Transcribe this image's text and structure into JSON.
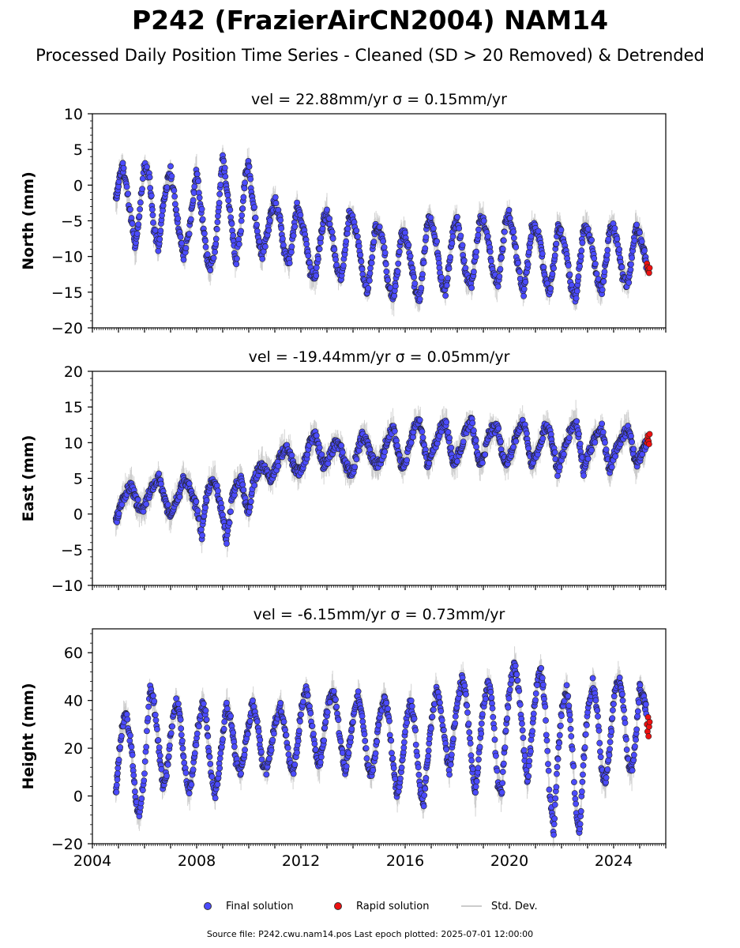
{
  "figure": {
    "title": "P242 (FrazierAirCN2004) NAM14",
    "subtitle": "Processed Daily Position Time Series - Cleaned (SD > 20 Removed) & Detrended",
    "footnote": "Source file: P242.cwu.nam14.pos  Last epoch plotted: 2025-07-01 12:00:00"
  },
  "colors": {
    "final": "#4b4bff",
    "rapid": "#ee1111",
    "stddev": "#c8c8c8",
    "edge": "#222222"
  },
  "legend": {
    "final": "Final solution",
    "rapid": "Rapid solution",
    "stddev": "Std. Dev."
  },
  "chart_data": [
    {
      "type": "scatter",
      "title": "vel = 22.88mm/yr   σ = 0.15mm/yr",
      "ylabel": "North (mm)",
      "xlim": [
        2004.0,
        2026.0
      ],
      "ylim": [
        -20,
        10
      ],
      "yticks": [
        -20,
        -15,
        -10,
        -5,
        0,
        5,
        10
      ],
      "xticks": [
        2004,
        2008,
        2012,
        2016,
        2020,
        2024
      ],
      "show_xtick_labels": false,
      "series": [
        {
          "name": "Final solution",
          "x": [
            2004.9,
            2005.0,
            2005.15,
            2005.3,
            2005.5,
            2005.65,
            2005.8,
            2006.0,
            2006.2,
            2006.35,
            2006.55,
            2006.7,
            2006.85,
            2007.0,
            2007.2,
            2007.35,
            2007.5,
            2007.7,
            2007.85,
            2008.0,
            2008.2,
            2008.35,
            2008.5,
            2008.7,
            2008.85,
            2009.0,
            2009.15,
            2009.35,
            2009.5,
            2009.7,
            2009.85,
            2010.0,
            2010.15,
            2010.35,
            2010.5,
            2010.7,
            2010.85,
            2011.0,
            2011.2,
            2011.35,
            2011.55,
            2011.7,
            2011.85,
            2012.0,
            2012.2,
            2012.35,
            2012.55,
            2012.7,
            2012.85,
            2013.0,
            2013.2,
            2013.35,
            2013.55,
            2013.7,
            2013.85,
            2014.0,
            2014.2,
            2014.35,
            2014.55,
            2014.7,
            2014.85,
            2015.0,
            2015.2,
            2015.35,
            2015.55,
            2015.7,
            2015.85,
            2016.0,
            2016.2,
            2016.35,
            2016.55,
            2016.7,
            2016.85,
            2017.0,
            2017.2,
            2017.35,
            2017.55,
            2017.7,
            2017.85,
            2018.0,
            2018.2,
            2018.35,
            2018.55,
            2018.7,
            2018.85,
            2019.0,
            2019.2,
            2019.35,
            2019.55,
            2019.7,
            2019.85,
            2020.0,
            2020.2,
            2020.35,
            2020.55,
            2020.7,
            2020.85,
            2021.0,
            2021.2,
            2021.35,
            2021.55,
            2021.7,
            2021.85,
            2022.0,
            2022.2,
            2022.35,
            2022.55,
            2022.7,
            2022.85,
            2023.0,
            2023.2,
            2023.35,
            2023.55,
            2023.7,
            2023.85,
            2024.0,
            2024.2,
            2024.35,
            2024.55,
            2024.7,
            2024.85,
            2025.0,
            2025.15,
            2025.25
          ],
          "y": [
            -2,
            0,
            3,
            0,
            -5,
            -9,
            -4,
            3,
            1,
            -6,
            -9,
            -3,
            0,
            2,
            -3,
            -7,
            -10,
            -7,
            -2,
            2,
            -4,
            -9,
            -12,
            -9,
            -3,
            4,
            0,
            -6,
            -11,
            -6,
            1,
            3,
            -2,
            -7,
            -10,
            -7,
            -4,
            -2,
            -5,
            -9,
            -11,
            -7,
            -3,
            -5,
            -8,
            -12,
            -13,
            -9,
            -5,
            -4,
            -7,
            -11,
            -13,
            -9,
            -4,
            -5,
            -8,
            -12,
            -15,
            -11,
            -6,
            -6,
            -9,
            -14,
            -16,
            -12,
            -7,
            -7,
            -10,
            -14,
            -16,
            -11,
            -5,
            -5,
            -8,
            -13,
            -15,
            -11,
            -6,
            -5,
            -9,
            -13,
            -14,
            -10,
            -5,
            -5,
            -8,
            -12,
            -14,
            -10,
            -5,
            -4,
            -8,
            -12,
            -15,
            -11,
            -6,
            -6,
            -8,
            -13,
            -15,
            -11,
            -6,
            -7,
            -10,
            -14,
            -16,
            -11,
            -6,
            -6,
            -9,
            -13,
            -15,
            -11,
            -6,
            -6,
            -9,
            -13,
            -14,
            -10,
            -6,
            -7,
            -9,
            -11
          ]
        },
        {
          "name": "Rapid solution",
          "x": [
            2025.28,
            2025.3,
            2025.32,
            2025.34,
            2025.36,
            2025.38
          ],
          "y": [
            -11,
            -11.5,
            -12,
            -11.8,
            -12.3,
            -11.6
          ]
        }
      ]
    },
    {
      "type": "scatter",
      "title": "vel = -19.44mm/yr   σ = 0.05mm/yr",
      "ylabel": "East (mm)",
      "xlim": [
        2004.0,
        2026.0
      ],
      "ylim": [
        -10,
        20
      ],
      "yticks": [
        -10,
        -5,
        0,
        5,
        10,
        15,
        20
      ],
      "xticks": [
        2004,
        2008,
        2012,
        2016,
        2020,
        2024
      ],
      "show_xtick_labels": false,
      "series": [
        {
          "name": "Final solution",
          "x": [
            2004.9,
            2005.0,
            2005.15,
            2005.3,
            2005.5,
            2005.65,
            2005.8,
            2006.0,
            2006.2,
            2006.35,
            2006.55,
            2006.7,
            2006.85,
            2007.0,
            2007.2,
            2007.35,
            2007.5,
            2007.7,
            2007.85,
            2008.0,
            2008.2,
            2008.35,
            2008.5,
            2008.7,
            2008.85,
            2009.0,
            2009.15,
            2009.35,
            2009.5,
            2009.7,
            2009.85,
            2010.0,
            2010.15,
            2010.35,
            2010.5,
            2010.7,
            2010.85,
            2011.0,
            2011.2,
            2011.35,
            2011.55,
            2011.7,
            2011.85,
            2012.0,
            2012.2,
            2012.35,
            2012.55,
            2012.7,
            2012.85,
            2013.0,
            2013.2,
            2013.35,
            2013.55,
            2013.7,
            2013.85,
            2014.0,
            2014.2,
            2014.35,
            2014.55,
            2014.7,
            2014.85,
            2015.0,
            2015.2,
            2015.35,
            2015.55,
            2015.7,
            2015.85,
            2016.0,
            2016.2,
            2016.35,
            2016.55,
            2016.7,
            2016.85,
            2017.0,
            2017.2,
            2017.35,
            2017.55,
            2017.7,
            2017.85,
            2018.0,
            2018.2,
            2018.35,
            2018.55,
            2018.7,
            2018.85,
            2019.0,
            2019.2,
            2019.35,
            2019.55,
            2019.7,
            2019.85,
            2020.0,
            2020.2,
            2020.35,
            2020.55,
            2020.7,
            2020.85,
            2021.0,
            2021.2,
            2021.35,
            2021.55,
            2021.7,
            2021.85,
            2022.0,
            2022.2,
            2022.35,
            2022.55,
            2022.7,
            2022.85,
            2023.0,
            2023.2,
            2023.35,
            2023.55,
            2023.7,
            2023.85,
            2024.0,
            2024.2,
            2024.35,
            2024.55,
            2024.7,
            2024.85,
            2025.0,
            2025.15,
            2025.25
          ],
          "y": [
            -1,
            0,
            2,
            3,
            4,
            2,
            1,
            1,
            3,
            4,
            5,
            3,
            1,
            0,
            2,
            3,
            5,
            4,
            2,
            1,
            -3,
            2,
            4,
            5,
            2,
            0,
            -4,
            2,
            4,
            5,
            2,
            0,
            4,
            6,
            7,
            6,
            5,
            6,
            8,
            9,
            9,
            7,
            6,
            6,
            8,
            10,
            11,
            9,
            7,
            7,
            9,
            10,
            9,
            7,
            6,
            6,
            9,
            11,
            10,
            8,
            7,
            7,
            9,
            11,
            12,
            9,
            7,
            7,
            10,
            12,
            13,
            10,
            7,
            8,
            10,
            12,
            13,
            10,
            7,
            8,
            10,
            12,
            13,
            10,
            7,
            8,
            11,
            12,
            12,
            9,
            7,
            8,
            10,
            12,
            13,
            10,
            7,
            8,
            10,
            12,
            12,
            9,
            6,
            8,
            10,
            12,
            13,
            10,
            6,
            8,
            10,
            11,
            12,
            9,
            6,
            8,
            10,
            11,
            12,
            10,
            7,
            8,
            9,
            10
          ]
        },
        {
          "name": "Rapid solution",
          "x": [
            2025.28,
            2025.3,
            2025.32,
            2025.34,
            2025.36,
            2025.38
          ],
          "y": [
            10,
            10.5,
            11,
            10.2,
            9.8,
            11.2
          ]
        }
      ]
    },
    {
      "type": "scatter",
      "title": "vel = -6.15mm/yr   σ = 0.73mm/yr",
      "ylabel": "Height (mm)",
      "xlim": [
        2004.0,
        2026.0
      ],
      "ylim": [
        -20,
        70
      ],
      "yticks": [
        -20,
        0,
        20,
        40,
        60
      ],
      "xticks": [
        2004,
        2008,
        2012,
        2016,
        2020,
        2024
      ],
      "show_xtick_labels": true,
      "series": [
        {
          "name": "Final solution",
          "x": [
            2004.9,
            2005.0,
            2005.15,
            2005.3,
            2005.5,
            2005.65,
            2005.8,
            2006.0,
            2006.2,
            2006.35,
            2006.55,
            2006.7,
            2006.85,
            2007.0,
            2007.2,
            2007.35,
            2007.5,
            2007.7,
            2007.85,
            2008.0,
            2008.2,
            2008.35,
            2008.5,
            2008.7,
            2008.85,
            2009.0,
            2009.15,
            2009.35,
            2009.5,
            2009.7,
            2009.85,
            2010.0,
            2010.15,
            2010.35,
            2010.5,
            2010.7,
            2010.85,
            2011.0,
            2011.2,
            2011.35,
            2011.55,
            2011.7,
            2011.85,
            2012.0,
            2012.2,
            2012.35,
            2012.55,
            2012.7,
            2012.85,
            2013.0,
            2013.2,
            2013.35,
            2013.55,
            2013.7,
            2013.85,
            2014.0,
            2014.2,
            2014.35,
            2014.55,
            2014.7,
            2014.85,
            2015.0,
            2015.2,
            2015.35,
            2015.55,
            2015.7,
            2015.85,
            2016.0,
            2016.2,
            2016.35,
            2016.55,
            2016.7,
            2016.85,
            2017.0,
            2017.2,
            2017.35,
            2017.55,
            2017.7,
            2017.85,
            2018.0,
            2018.2,
            2018.35,
            2018.55,
            2018.7,
            2018.85,
            2019.0,
            2019.2,
            2019.35,
            2019.55,
            2019.7,
            2019.85,
            2020.0,
            2020.2,
            2020.35,
            2020.55,
            2020.7,
            2020.85,
            2021.0,
            2021.2,
            2021.35,
            2021.55,
            2021.7,
            2021.85,
            2022.0,
            2022.2,
            2022.35,
            2022.55,
            2022.7,
            2022.85,
            2023.0,
            2023.2,
            2023.35,
            2023.55,
            2023.7,
            2023.85,
            2024.0,
            2024.2,
            2024.35,
            2024.55,
            2024.7,
            2024.85,
            2025.0,
            2025.15,
            2025.25
          ],
          "y": [
            0,
            15,
            30,
            35,
            20,
            0,
            -10,
            10,
            45,
            40,
            20,
            5,
            10,
            25,
            40,
            35,
            15,
            0,
            10,
            25,
            38,
            35,
            15,
            0,
            10,
            25,
            38,
            30,
            15,
            10,
            20,
            30,
            40,
            30,
            15,
            10,
            20,
            30,
            38,
            32,
            15,
            10,
            20,
            35,
            45,
            35,
            20,
            12,
            22,
            35,
            45,
            38,
            20,
            10,
            20,
            32,
            42,
            35,
            15,
            8,
            18,
            32,
            40,
            35,
            12,
            0,
            10,
            28,
            40,
            32,
            5,
            -5,
            15,
            30,
            45,
            38,
            20,
            10,
            25,
            40,
            50,
            40,
            15,
            0,
            20,
            38,
            48,
            38,
            5,
            0,
            25,
            45,
            55,
            45,
            20,
            5,
            25,
            42,
            55,
            40,
            0,
            -15,
            15,
            35,
            45,
            30,
            -5,
            -15,
            15,
            35,
            48,
            38,
            10,
            5,
            20,
            40,
            50,
            40,
            15,
            10,
            25,
            45,
            42,
            36
          ]
        },
        {
          "name": "Rapid solution",
          "x": [
            2025.28,
            2025.3,
            2025.32,
            2025.34,
            2025.36,
            2025.38
          ],
          "y": [
            30,
            27,
            33,
            25,
            29,
            31
          ]
        }
      ]
    }
  ]
}
